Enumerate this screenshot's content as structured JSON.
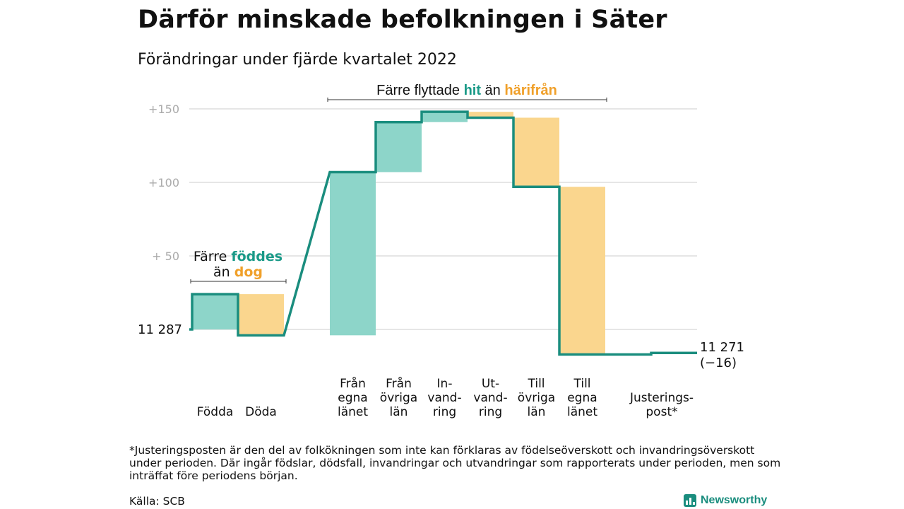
{
  "title": "Därför minskade befolkningen i Säter",
  "subtitle": "Förändringar under fjärde kvartalet 2022",
  "chart_data": {
    "type": "waterfall",
    "start": {
      "label": "11 287",
      "value": 11287
    },
    "end": {
      "label_line1": "11 271",
      "label_line2": "(−16)",
      "value": 11271
    },
    "y_ticks": [
      {
        "value": 50,
        "label": "+ 50"
      },
      {
        "value": 100,
        "label": "+100"
      },
      {
        "value": 150,
        "label": "+150"
      }
    ],
    "steps": [
      {
        "label": [
          "",
          "",
          "Födda"
        ],
        "delta": 24,
        "color": "teal"
      },
      {
        "label": [
          "",
          "",
          "Döda"
        ],
        "delta": -28,
        "color": "orange"
      },
      {
        "label": [
          "Från",
          "egna",
          "länet"
        ],
        "delta": 111,
        "color": "teal"
      },
      {
        "label": [
          "Från",
          "övriga",
          "län"
        ],
        "delta": 34,
        "color": "teal"
      },
      {
        "label": [
          "In-",
          "vand-",
          "ring"
        ],
        "delta": 7,
        "color": "teal"
      },
      {
        "label": [
          "Ut-",
          "vand-",
          "ring"
        ],
        "delta": -4,
        "color": "orange"
      },
      {
        "label": [
          "Till",
          "övriga",
          "län"
        ],
        "delta": -47,
        "color": "orange"
      },
      {
        "label": [
          "Till",
          "egna",
          "länet"
        ],
        "delta": -114,
        "color": "orange"
      },
      {
        "label": [
          "",
          "Justerings-",
          "post*"
        ],
        "delta": 1,
        "color": "none"
      }
    ],
    "annotations": {
      "births": {
        "line1_a": "Färre ",
        "line1_b": "föddes",
        "line2_a": "än ",
        "line2_b": "dog"
      },
      "moves": {
        "a": "Färre flyttade ",
        "b": "hit",
        "c": " än ",
        "d": "härifrån"
      }
    },
    "colors": {
      "teal": "#8dd5c9",
      "orange": "#fad68e",
      "line": "#1a8d7e",
      "teal_text": "#1a9a88",
      "orange_text": "#f0a02a",
      "grid": "#dddddd",
      "tick": "#aaaaaa"
    }
  },
  "footnote": "*Justeringsposten är den del av folkökningen som inte kan förklaras av födelseöverskott och invandringsöverskott under perioden. Där ingår födslar, dödsfall, invandringar och utvandringar som rapporterats under perioden, men som inträffat före periodens början.",
  "source": "Källa: SCB",
  "brand": "Newsworthy"
}
